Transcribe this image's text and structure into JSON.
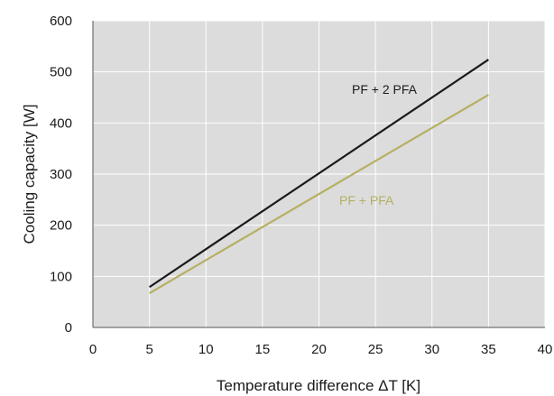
{
  "chart_data": {
    "type": "line",
    "title": "",
    "xlabel": "Temperature difference ΔT [K]",
    "ylabel": "Cooling capacity [W]",
    "xlim": [
      0,
      40
    ],
    "ylim": [
      0,
      600
    ],
    "xticks": [
      0,
      5,
      10,
      15,
      20,
      25,
      30,
      35,
      40
    ],
    "yticks": [
      0,
      100,
      200,
      300,
      400,
      500,
      600
    ],
    "grid": true,
    "plot_background": "#dcdcdc",
    "grid_color": "#ffffff",
    "series": [
      {
        "name": "PF + 2 PFA",
        "color": "#1a1a1a",
        "x": [
          5,
          35
        ],
        "y": [
          79,
          524
        ]
      },
      {
        "name": "PF + PFA",
        "color": "#b5b063",
        "x": [
          5,
          35
        ],
        "y": [
          67,
          455
        ]
      }
    ]
  }
}
